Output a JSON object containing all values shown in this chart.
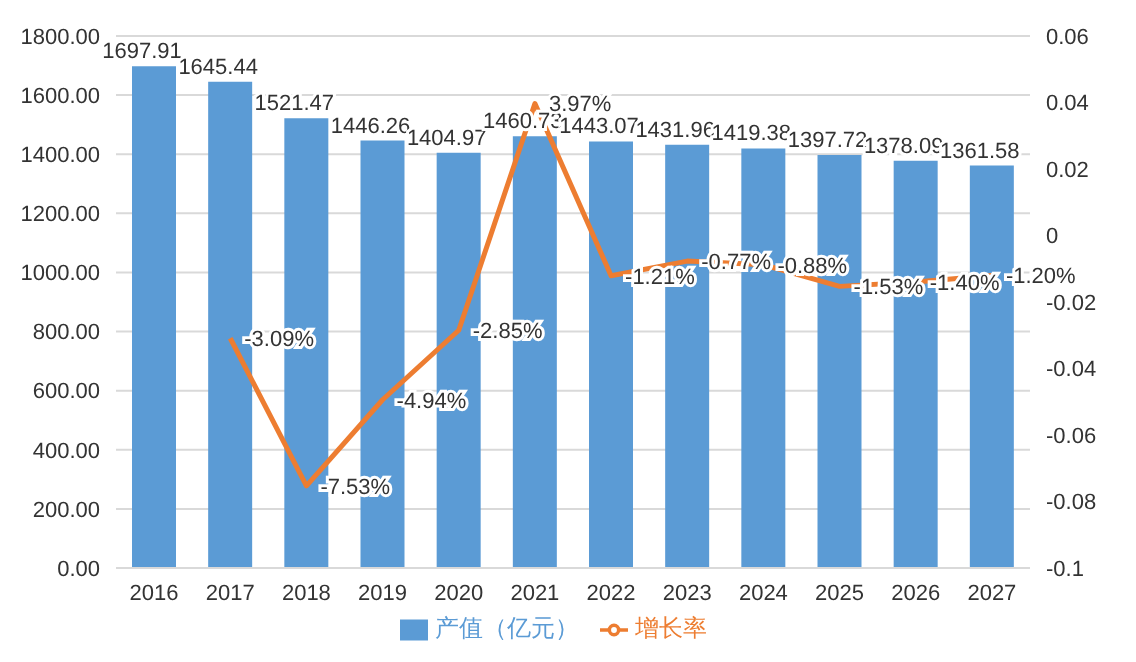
{
  "chart_data": {
    "type": "bar",
    "categories": [
      "2016",
      "2017",
      "2018",
      "2019",
      "2020",
      "2021",
      "2022",
      "2023",
      "2024",
      "2025",
      "2026",
      "2027"
    ],
    "series": [
      {
        "name": "产值（亿元）",
        "color": "#5b9bd5",
        "values": [
          1697.91,
          1645.44,
          1521.47,
          1446.26,
          1404.97,
          1460.73,
          1443.07,
          1431.96,
          1419.38,
          1397.72,
          1378.09,
          1361.58
        ],
        "value_labels": [
          "1697.91",
          "1645.44",
          "1521.47",
          "1446.26",
          "1404.97",
          "1460.73",
          "1443.07",
          "1431.96",
          "1419.38",
          "1397.72",
          "1378.09",
          "1361.58"
        ]
      },
      {
        "name": "增长率",
        "type": "line",
        "axis": "y2",
        "color": "#ed7d31",
        "values": [
          null,
          -0.0309,
          -0.0753,
          -0.0494,
          -0.0285,
          0.0397,
          -0.0121,
          -0.0077,
          -0.0088,
          -0.0153,
          -0.014,
          -0.012
        ],
        "value_labels": [
          null,
          "-3.09%",
          "-7.53%",
          "-4.94%",
          "-2.85%",
          "3.97%",
          "-1.21%",
          "-0.77%",
          "-0.88%",
          "-1.53%",
          "-1.40%",
          "-1.20%"
        ]
      }
    ],
    "ylim": [
      0,
      1800
    ],
    "yticks": [
      {
        "value": 0,
        "label": "0.00"
      },
      {
        "value": 200,
        "label": "200.00"
      },
      {
        "value": 400,
        "label": "400.00"
      },
      {
        "value": 600,
        "label": "600.00"
      },
      {
        "value": 800,
        "label": "800.00"
      },
      {
        "value": 1000,
        "label": "1000.00"
      },
      {
        "value": 1200,
        "label": "1200.00"
      },
      {
        "value": 1400,
        "label": "1400.00"
      },
      {
        "value": 1600,
        "label": "1600.00"
      },
      {
        "value": 1800,
        "label": "1800.00"
      }
    ],
    "y2lim": [
      -0.1,
      0.06
    ],
    "y2ticks": [
      -0.1,
      -0.08,
      -0.06,
      -0.04,
      -0.02,
      0,
      0.02,
      0.04,
      0.06
    ],
    "grid": "y",
    "legend": "bottom",
    "marker": "none",
    "line_style": "solid"
  }
}
